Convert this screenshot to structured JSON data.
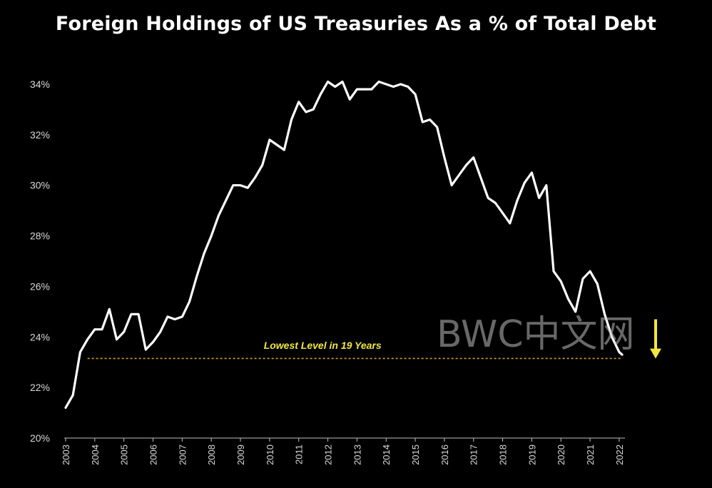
{
  "chart_data": {
    "type": "line",
    "title": "Foreign Holdings of US Treasuries As a % of Total Debt",
    "xlabel": "",
    "ylabel": "",
    "ylim": [
      20,
      35
    ],
    "xlim": [
      2003,
      2022.1
    ],
    "yticks": [
      20,
      22,
      24,
      26,
      28,
      30,
      32,
      34
    ],
    "ytick_labels": [
      "20%",
      "22%",
      "24%",
      "26%",
      "28%",
      "30%",
      "32%",
      "34%"
    ],
    "xticks": [
      "2003",
      "2004",
      "2005",
      "2006",
      "2007",
      "2008",
      "2009",
      "2010",
      "2011",
      "2012",
      "2013",
      "2014",
      "2015",
      "2016",
      "2017",
      "2018",
      "2019",
      "2020",
      "2021",
      "2022"
    ],
    "series": [
      {
        "name": "Foreign holdings % of total debt",
        "color": "#ffffff",
        "x": [
          2003.0,
          2003.25,
          2003.5,
          2003.75,
          2004.0,
          2004.25,
          2004.5,
          2004.75,
          2005.0,
          2005.25,
          2005.5,
          2005.75,
          2006.0,
          2006.25,
          2006.5,
          2006.75,
          2007.0,
          2007.25,
          2007.5,
          2007.75,
          2008.0,
          2008.25,
          2008.5,
          2008.75,
          2009.0,
          2009.25,
          2009.5,
          2009.75,
          2010.0,
          2010.25,
          2010.5,
          2010.75,
          2011.0,
          2011.25,
          2011.5,
          2011.75,
          2012.0,
          2012.25,
          2012.5,
          2012.75,
          2013.0,
          2013.25,
          2013.5,
          2013.75,
          2014.0,
          2014.25,
          2014.5,
          2014.75,
          2015.0,
          2015.25,
          2015.5,
          2015.75,
          2016.0,
          2016.25,
          2016.5,
          2016.75,
          2017.0,
          2017.25,
          2017.5,
          2017.75,
          2018.0,
          2018.25,
          2018.5,
          2018.75,
          2019.0,
          2019.25,
          2019.5,
          2019.75,
          2020.0,
          2020.25,
          2020.5,
          2020.75,
          2021.0,
          2021.25,
          2021.5,
          2021.75,
          2022.0,
          2022.1
        ],
        "values": [
          21.2,
          21.7,
          23.4,
          23.9,
          24.3,
          24.3,
          25.1,
          23.9,
          24.2,
          24.9,
          24.9,
          23.5,
          23.8,
          24.2,
          24.8,
          24.7,
          24.8,
          25.4,
          26.4,
          27.3,
          28.0,
          28.8,
          29.4,
          30.0,
          30.0,
          29.9,
          30.3,
          30.8,
          31.8,
          31.6,
          31.4,
          32.6,
          33.3,
          32.9,
          33.0,
          33.6,
          34.1,
          33.9,
          34.1,
          33.4,
          33.8,
          33.8,
          33.8,
          34.1,
          34.0,
          33.9,
          34.0,
          33.9,
          33.6,
          32.5,
          32.6,
          32.3,
          31.1,
          30.0,
          30.4,
          30.8,
          31.1,
          30.3,
          29.5,
          29.3,
          28.9,
          28.5,
          29.4,
          30.1,
          30.5,
          29.5,
          30.0,
          26.6,
          26.2,
          25.5,
          25.0,
          26.3,
          26.6,
          26.1,
          24.9,
          24.0,
          23.4,
          23.3
        ]
      }
    ],
    "reference_line": {
      "y": 23.15,
      "x_start": 2003.75,
      "x_end": 2022.1,
      "style": "dotted",
      "color": "#d4a017"
    },
    "annotations": [
      {
        "text": "Lowest Level in 19 Years",
        "x": 2009.8,
        "y": 23.55,
        "color": "#f2e63a"
      }
    ],
    "arrow": {
      "x": 2023.4,
      "y_from": 24.7,
      "y_to": 23.2,
      "color": "#f2e63a"
    },
    "grid": false,
    "legend": "none"
  },
  "watermark": {
    "text": "BWC中文网"
  }
}
